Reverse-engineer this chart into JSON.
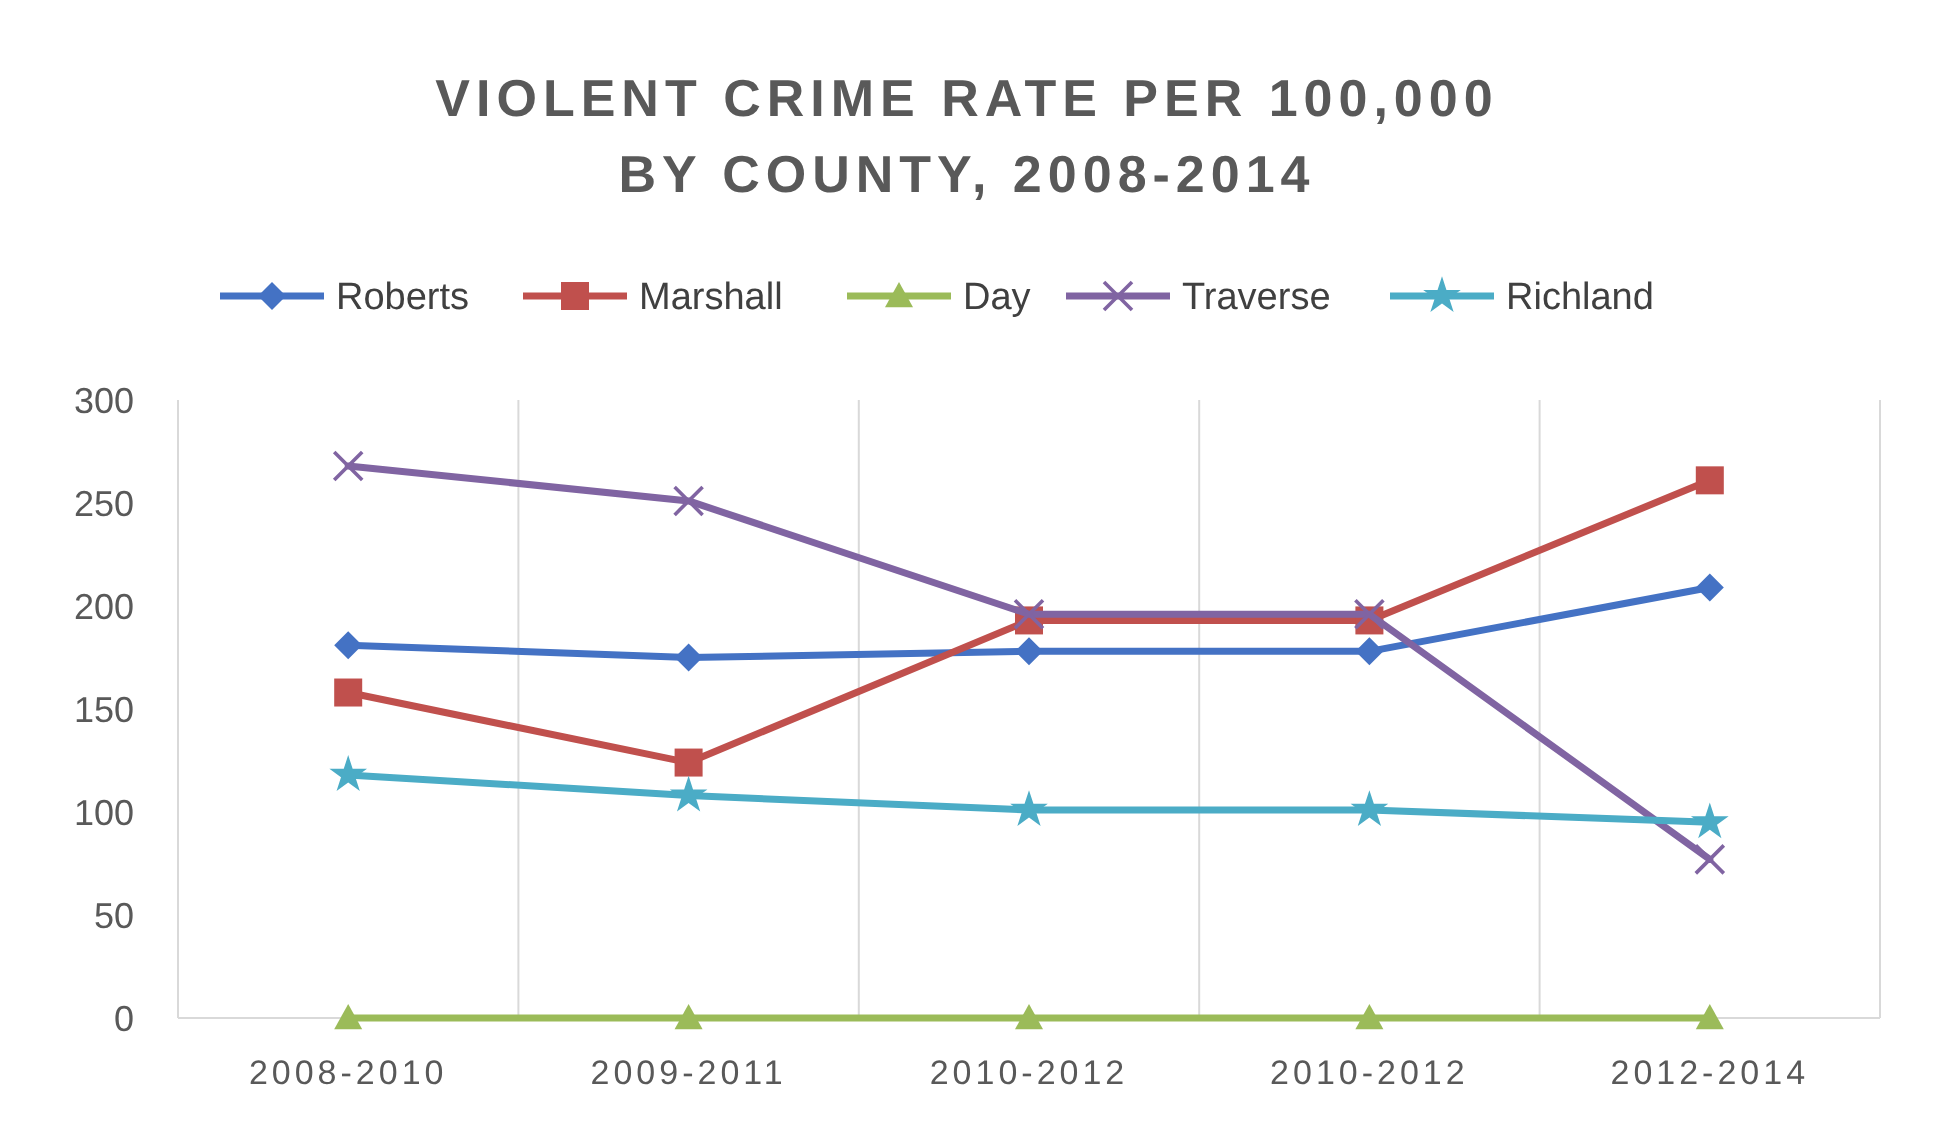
{
  "chart_data": {
    "type": "line",
    "title": "VIOLENT CRIME RATE PER 100,000 BY COUNTY, 2008-2014",
    "categories": [
      "2008-2010",
      "2009-2011",
      "2010-2012",
      "2010-2012",
      "2012-2014"
    ],
    "series": [
      {
        "name": "Roberts",
        "color": "#4472c4",
        "marker": "diamond",
        "values": [
          181,
          175,
          178,
          178,
          209
        ]
      },
      {
        "name": "Marshall",
        "color": "#c0504d",
        "marker": "square",
        "values": [
          158,
          124,
          193,
          193,
          261
        ]
      },
      {
        "name": "Day",
        "color": "#9bbb59",
        "marker": "triangle",
        "values": [
          0,
          0,
          0,
          0,
          0
        ]
      },
      {
        "name": "Traverse",
        "color": "#8064a2",
        "marker": "cross",
        "values": [
          268,
          251,
          196,
          196,
          77
        ]
      },
      {
        "name": "Richland",
        "color": "#4bacc6",
        "marker": "star",
        "values": [
          118,
          108,
          101,
          101,
          95
        ]
      }
    ],
    "ylim": [
      0,
      300
    ],
    "yticks": [
      0,
      50,
      100,
      150,
      200,
      250,
      300
    ],
    "grid": "x",
    "legend": "top"
  }
}
